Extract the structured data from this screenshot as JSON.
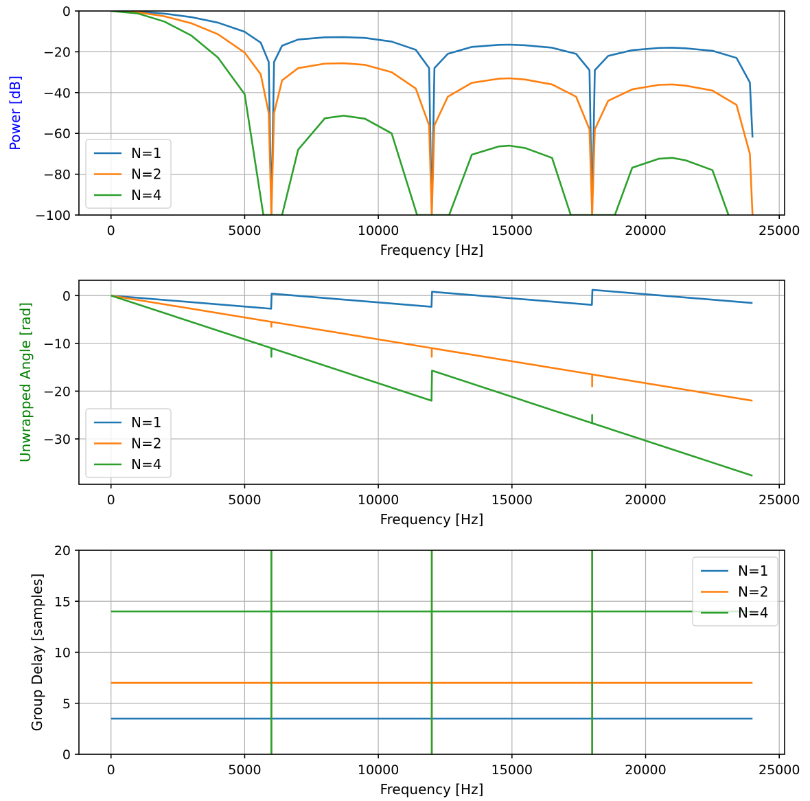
{
  "colors": {
    "N1": "#1f77b4",
    "N2": "#ff7f0e",
    "N4": "#2ca02c"
  },
  "chart_data": [
    {
      "type": "line",
      "xlabel": "Frequency [Hz]",
      "ylabel": "Power [dB]",
      "ylabel_color": "#0000ff",
      "xlim": [
        -1200,
        25200
      ],
      "ylim": [
        -100,
        0
      ],
      "xticks": [
        0,
        5000,
        10000,
        15000,
        20000,
        25000
      ],
      "yticks": [
        0,
        -20,
        -40,
        -60,
        -80,
        -100
      ],
      "grid": true,
      "legend_position": "lower-left",
      "series": [
        {
          "name": "N=1",
          "color_key": "N1",
          "x": [
            0,
            1000,
            2000,
            3000,
            4000,
            5000,
            5600,
            5900,
            6000,
            6100,
            6400,
            7000,
            8000,
            8700,
            9500,
            10500,
            11400,
            11900,
            12000,
            12100,
            12600,
            13500,
            14500,
            14900,
            15500,
            16500,
            17400,
            17900,
            18000,
            18100,
            18600,
            19500,
            20500,
            21000,
            21500,
            22500,
            23400,
            23900,
            24000
          ],
          "y": [
            0,
            -0.3,
            -1.3,
            -3,
            -5.7,
            -10.2,
            -15.5,
            -25,
            -100,
            -25,
            -17,
            -14,
            -12.9,
            -12.8,
            -13.2,
            -15,
            -19,
            -28,
            -100,
            -28,
            -21,
            -17.6,
            -16.6,
            -16.5,
            -16.8,
            -18,
            -21,
            -29,
            -100,
            -29,
            -22,
            -19.2,
            -18.1,
            -18,
            -18.3,
            -19.5,
            -23,
            -35,
            -62
          ]
        },
        {
          "name": "N=2",
          "color_key": "N2",
          "x": [
            0,
            1000,
            2000,
            3000,
            4000,
            5000,
            5600,
            5900,
            6000,
            6100,
            6400,
            7000,
            8000,
            8700,
            9500,
            10500,
            11400,
            11900,
            12000,
            12100,
            12600,
            13500,
            14500,
            14900,
            15500,
            16500,
            17400,
            17900,
            18000,
            18100,
            18600,
            19500,
            20500,
            21000,
            21500,
            22500,
            23400,
            23900,
            24000
          ],
          "y": [
            0,
            -0.6,
            -2.6,
            -6,
            -11.4,
            -20.4,
            -31,
            -50,
            -100,
            -50,
            -34,
            -28,
            -25.8,
            -25.6,
            -26.4,
            -30,
            -38,
            -56,
            -100,
            -56,
            -42,
            -35.2,
            -33.2,
            -33,
            -33.6,
            -36,
            -42,
            -58,
            -100,
            -58,
            -44,
            -38.4,
            -36.2,
            -36,
            -36.6,
            -39,
            -46,
            -70,
            -100
          ]
        },
        {
          "name": "N=4",
          "color_key": "N4",
          "x": [
            0,
            1000,
            2000,
            3000,
            4000,
            5000,
            5700,
            6400,
            7000,
            8000,
            8700,
            9500,
            10500,
            11450,
            12650,
            13500,
            14500,
            14900,
            15500,
            16500,
            17200,
            18850,
            19500,
            20500,
            21000,
            21500,
            22500,
            23100
          ],
          "y": [
            0,
            -1.2,
            -5.2,
            -12,
            -22.8,
            -40.8,
            -100,
            -100,
            -68,
            -52.6,
            -51.3,
            -52.8,
            -60,
            -100,
            -100,
            -70.4,
            -66.4,
            -66,
            -67.2,
            -72,
            -100,
            -100,
            -76.8,
            -72.4,
            -72,
            -73.2,
            -78,
            -100
          ]
        }
      ]
    },
    {
      "type": "line",
      "xlabel": "Frequency [Hz]",
      "ylabel": "Unwrapped Angle [rad]",
      "ylabel_color": "#008000",
      "xlim": [
        -1200,
        25200
      ],
      "ylim": [
        -39.5,
        3.2
      ],
      "xticks": [
        0,
        5000,
        10000,
        15000,
        20000,
        25000
      ],
      "yticks": [
        0,
        -10,
        -20,
        -30
      ],
      "grid": true,
      "legend_position": "lower-left",
      "series": [
        {
          "name": "N=1",
          "color_key": "N1",
          "x": [
            0,
            5990,
            6010,
            11990,
            12010,
            17990,
            18010,
            24000
          ],
          "y": [
            0,
            -2.75,
            0.4,
            -2.35,
            0.8,
            -1.95,
            1.2,
            -1.55
          ]
        },
        {
          "name": "N=2",
          "color_key": "N2",
          "x": [
            0,
            6000,
            6000,
            6000,
            12000,
            12000,
            12000,
            18000,
            18000,
            18000,
            24000
          ],
          "y": [
            0,
            -5.5,
            -6.5,
            -5.5,
            -11,
            -12.8,
            -11,
            -16.5,
            -19,
            -16.5,
            -22
          ]
        },
        {
          "name": "N=4",
          "color_key": "N4",
          "x": [
            0,
            6000,
            6000,
            6000,
            11990,
            12010,
            18000,
            18000,
            18000,
            24000
          ],
          "y": [
            0,
            -11,
            -12.8,
            -11,
            -22,
            -15.7,
            -26.7,
            -25,
            -26.7,
            -37.7
          ]
        }
      ]
    },
    {
      "type": "line",
      "xlabel": "Frequency [Hz]",
      "ylabel": "Group Delay [samples]",
      "ylabel_color": "#000000",
      "xlim": [
        -1200,
        25200
      ],
      "ylim": [
        0,
        20
      ],
      "xticks": [
        0,
        5000,
        10000,
        15000,
        20000,
        25000
      ],
      "yticks": [
        0,
        5,
        10,
        15,
        20
      ],
      "grid": true,
      "legend_position": "upper-right",
      "series": [
        {
          "name": "N=1",
          "color_key": "N1",
          "x": [
            0,
            24000
          ],
          "y": [
            3.5,
            3.5
          ]
        },
        {
          "name": "N=2",
          "color_key": "N2",
          "x": [
            0,
            12000,
            12000,
            12000,
            12000,
            24000
          ],
          "y": [
            7,
            7,
            20,
            0,
            7,
            7
          ]
        },
        {
          "name": "N=4",
          "color_key": "N4",
          "x": [
            0,
            6000,
            6000,
            6000,
            6000,
            12000,
            12000,
            12000,
            12000,
            18000,
            18000,
            18000,
            18000,
            24000
          ],
          "y": [
            14,
            14,
            20,
            0,
            14,
            14,
            20,
            0,
            14,
            14,
            20,
            0,
            14,
            14
          ]
        }
      ],
      "extra_spikes": [
        {
          "color_key": "N2",
          "x": 6000,
          "y": [
            0,
            20
          ]
        },
        {
          "color_key": "N2",
          "x": 18000,
          "y": [
            0,
            20
          ]
        }
      ]
    }
  ]
}
